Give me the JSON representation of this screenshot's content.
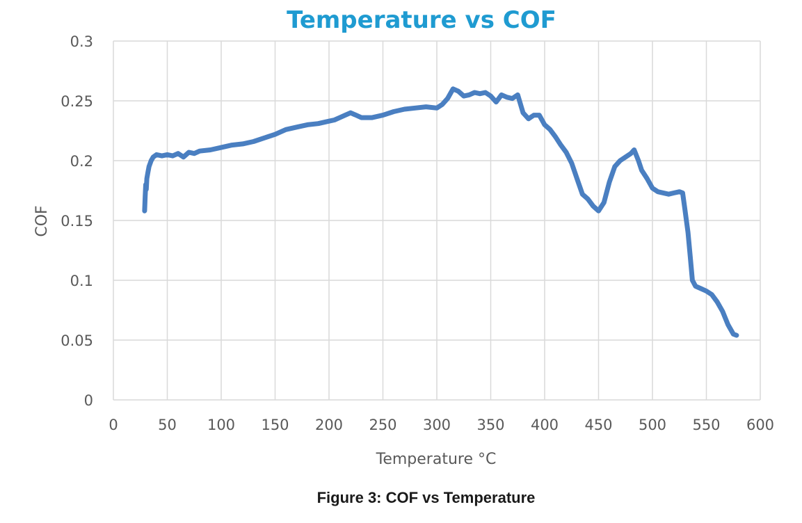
{
  "caption": "Figure 3: COF vs Temperature",
  "chart_data": {
    "type": "line",
    "title": "Temperature vs COF",
    "xlabel": "Temperature °C",
    "ylabel": "COF",
    "xlim": [
      0,
      600
    ],
    "ylim": [
      0,
      0.3
    ],
    "xticks": [
      "0",
      "50",
      "100",
      "150",
      "200",
      "250",
      "300",
      "350",
      "400",
      "450",
      "500",
      "550",
      "600"
    ],
    "yticks": [
      "0",
      "0.05",
      "0.1",
      "0.15",
      "0.2",
      "0.25",
      "0.3"
    ],
    "grid": true,
    "legend": "none",
    "colors": {
      "series": "#4a7fc1",
      "grid": "#d9d9d9",
      "title": "#1f9bd1",
      "text": "#595959"
    },
    "series": [
      {
        "x": [
          29,
          29.5,
          30,
          30.5,
          31,
          32,
          33,
          35,
          37,
          40,
          45,
          50,
          55,
          60,
          65,
          70,
          75,
          80,
          90,
          100,
          110,
          120,
          130,
          140,
          150,
          160,
          170,
          180,
          190,
          200,
          205,
          210,
          215,
          220,
          225,
          230,
          240,
          250,
          260,
          270,
          280,
          290,
          300,
          305,
          310,
          315,
          320,
          325,
          330,
          335,
          340,
          345,
          350,
          355,
          360,
          365,
          370,
          375,
          380,
          385,
          390,
          395,
          400,
          405,
          410,
          415,
          420,
          425,
          430,
          435,
          440,
          445,
          450,
          455,
          460,
          465,
          470,
          475,
          480,
          483,
          487,
          490,
          495,
          500,
          505,
          510,
          515,
          520,
          525,
          528,
          530,
          533,
          535,
          537,
          540,
          545,
          550,
          555,
          560,
          565,
          570,
          575,
          578
        ],
        "y": [
          0.158,
          0.17,
          0.18,
          0.176,
          0.185,
          0.19,
          0.195,
          0.2,
          0.203,
          0.205,
          0.204,
          0.205,
          0.204,
          0.206,
          0.203,
          0.207,
          0.206,
          0.208,
          0.209,
          0.211,
          0.213,
          0.214,
          0.216,
          0.219,
          0.222,
          0.226,
          0.228,
          0.23,
          0.231,
          0.233,
          0.234,
          0.236,
          0.238,
          0.24,
          0.238,
          0.236,
          0.236,
          0.238,
          0.241,
          0.243,
          0.244,
          0.245,
          0.244,
          0.247,
          0.252,
          0.26,
          0.258,
          0.254,
          0.255,
          0.257,
          0.256,
          0.257,
          0.254,
          0.249,
          0.255,
          0.253,
          0.252,
          0.255,
          0.24,
          0.235,
          0.238,
          0.238,
          0.23,
          0.226,
          0.22,
          0.213,
          0.207,
          0.198,
          0.185,
          0.172,
          0.168,
          0.162,
          0.158,
          0.165,
          0.182,
          0.195,
          0.2,
          0.203,
          0.206,
          0.209,
          0.2,
          0.192,
          0.185,
          0.177,
          0.174,
          0.173,
          0.172,
          0.173,
          0.174,
          0.173,
          0.16,
          0.14,
          0.12,
          0.1,
          0.095,
          0.093,
          0.091,
          0.088,
          0.082,
          0.074,
          0.063,
          0.055,
          0.054
        ]
      }
    ]
  }
}
